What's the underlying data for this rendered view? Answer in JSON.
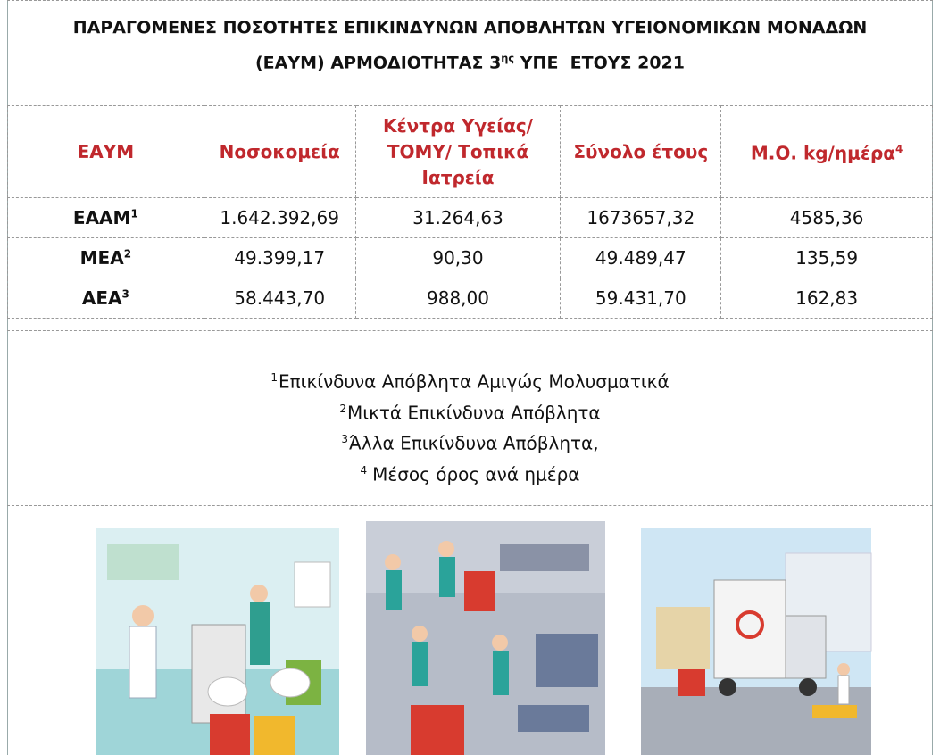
{
  "header": {
    "title_line1": "ΠΑΡΑΓΟΜΕΝΕΣ ΠΟΣΟΤΗΤΕΣ ΕΠΙΚΙΝΔΥΝΩΝ ΑΠΟΒΛΗΤΩΝ ΥΓΕΙΟΝΟΜΙΚΩΝ ΜΟΝΑΔΩΝ",
    "title_line2_before": "(ΕΑΥΜ) ΑΡΜΟΔΙΟΤΗΤΑΣ 3",
    "title_sup": "ης",
    "title_line2_after": " ΥΠΕ  ΕΤΟΥΣ 2021"
  },
  "table": {
    "columns": [
      {
        "text": "ΕΑΥΜ"
      },
      {
        "text": "Νοσοκομεία"
      },
      {
        "text": "Κέντρα Υγείας/ ΤΟΜΥ/ Τοπικά Ιατρεία"
      },
      {
        "text": "Σύνολο έτους"
      },
      {
        "text": "Μ.Ο. kg/ημέρα",
        "sup": "4"
      }
    ],
    "rows": [
      {
        "name": "ΕΑΑΜ",
        "sup": "1",
        "cells": [
          "1.642.392,69",
          "31.264,63",
          "1673657,32",
          "4585,36"
        ]
      },
      {
        "name": "ΜΕΑ",
        "sup": "2",
        "cells": [
          "49.399,17",
          "90,30",
          "49.489,47",
          "135,59"
        ]
      },
      {
        "name": "ΑΕΑ",
        "sup": "3",
        "cells": [
          "58.443,70",
          "988,00",
          "59.431,70",
          "162,83"
        ]
      }
    ]
  },
  "footnotes": [
    {
      "sup": "1",
      "text": "Επικίνδυνα Απόβλητα Αμιγώς Μολυσματικά"
    },
    {
      "sup": "2",
      "text": "Μικτά Επικίνδυνα Απόβλητα"
    },
    {
      "sup": "3",
      "text": "Άλλα Επικίνδυνα Απόβλητα,"
    },
    {
      "sup": "4",
      "text": "Μέσος όρος ανά ημέρα"
    }
  ]
}
